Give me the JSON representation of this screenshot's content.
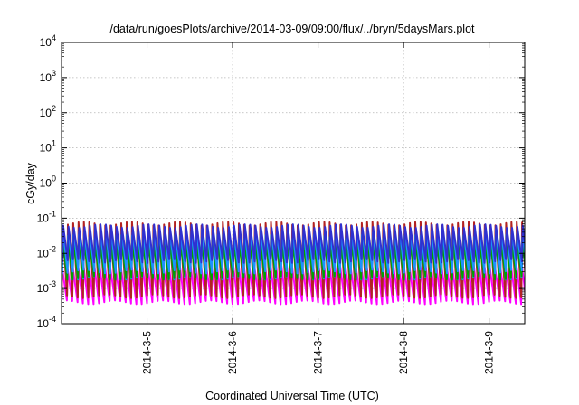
{
  "chart_data": {
    "type": "line",
    "title": "/data/run/goesPlots/archive/2014-03-09/09:00/flux/../bryn/5daysMars.plot",
    "xlabel": "Coordinated Universal Time (UTC)",
    "ylabel": "cGy/day",
    "x_range": [
      "2014-03-04 00:00",
      "2014-03-09 10:00"
    ],
    "x_ticks": [
      "2014-3-5",
      "2014-3-6",
      "2014-3-7",
      "2014-3-8",
      "2014-3-9"
    ],
    "y_scale": "log",
    "ylim": [
      0.0001,
      10000
    ],
    "y_ticks": [
      {
        "base": "10",
        "exp": "4"
      },
      {
        "base": "10",
        "exp": "3"
      },
      {
        "base": "10",
        "exp": "2"
      },
      {
        "base": "10",
        "exp": "1"
      },
      {
        "base": "10",
        "exp": "0"
      },
      {
        "base": "10",
        "exp": "-1"
      },
      {
        "base": "10",
        "exp": "-2"
      },
      {
        "base": "10",
        "exp": "-3"
      },
      {
        "base": "10",
        "exp": "-4"
      }
    ],
    "grid": true,
    "legend": "none",
    "cycle_hours": 1.5,
    "series": [
      {
        "color": "#ff00ff",
        "low": 0.0004,
        "high": 0.004
      },
      {
        "color": "#b22222",
        "low": 0.0006,
        "high": 0.07
      },
      {
        "color": "#00b8b8",
        "low": 0.002,
        "high": 0.03
      },
      {
        "color": "#00a000",
        "low": 0.002,
        "high": 0.02
      },
      {
        "color": "#1e90ff",
        "low": 0.003,
        "high": 0.045
      },
      {
        "color": "#3030d0",
        "low": 0.006,
        "high": 0.06
      }
    ]
  }
}
